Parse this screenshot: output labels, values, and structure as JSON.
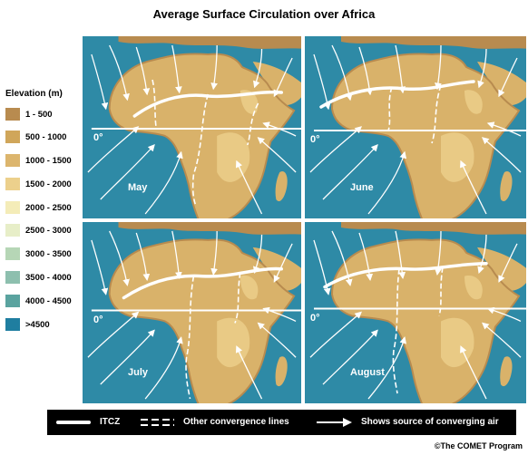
{
  "title": "Average Surface Circulation over Africa",
  "legend": {
    "title": "Elevation (m)",
    "items": [
      {
        "label": "1 - 500",
        "color": "#b88b4f"
      },
      {
        "label": "500 - 1000",
        "color": "#d0a65a"
      },
      {
        "label": "1000 - 1500",
        "color": "#dcb56d"
      },
      {
        "label": "1500 - 2000",
        "color": "#ecd08c"
      },
      {
        "label": "2000 - 2500",
        "color": "#f4ecb8"
      },
      {
        "label": "2500 - 3000",
        "color": "#e7eec8"
      },
      {
        "label": "3000 - 3500",
        "color": "#b6d6b6"
      },
      {
        "label": "3500 - 4000",
        "color": "#8dbfae"
      },
      {
        "label": "4000 - 4500",
        "color": "#5aa39f"
      },
      {
        "label": ">4500",
        "color": "#1f7ea0"
      }
    ]
  },
  "panels": [
    {
      "month": "May",
      "equator_label": "0°"
    },
    {
      "month": "June",
      "equator_label": "0°"
    },
    {
      "month": "July",
      "equator_label": "0°"
    },
    {
      "month": "August",
      "equator_label": "0°"
    }
  ],
  "key": {
    "itcz_label": "ITCZ",
    "convergence_label": "Other convergence lines",
    "source_label": "Shows source of converging air"
  },
  "credit": "©The COMET Program",
  "colors": {
    "ocean": "#2e8aa6",
    "land_low": "#b88b4f",
    "land_mid": "#d9b26a",
    "land_high": "#ecd08c",
    "flow": "#ffffff"
  }
}
